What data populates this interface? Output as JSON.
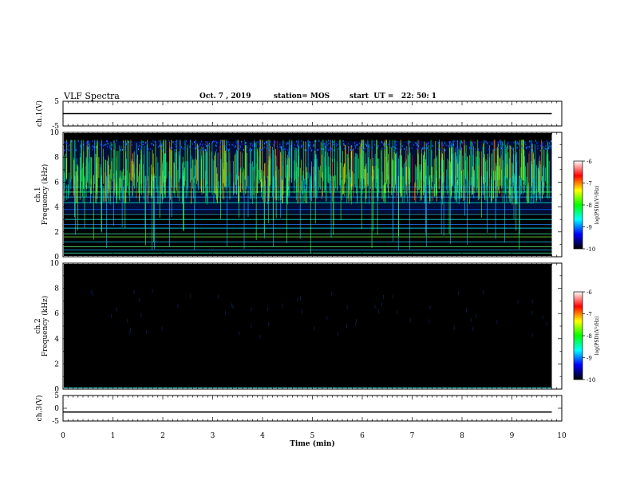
{
  "header": {
    "title": "VLF Spectra",
    "date": "Oct. 7 , 2019",
    "station": "station= MOS",
    "start": "start  UT =   22: 50: 1"
  },
  "colorbar": {
    "label": "log(PSD)(V²/Hz)",
    "ticks": [
      "-6",
      "-7",
      "-8",
      "-9",
      "-10"
    ],
    "colors": [
      "#ffffff",
      "#ff0000",
      "#ffff00",
      "#00ff00",
      "#00ffff",
      "#0000ff",
      "#000000"
    ]
  },
  "chart_data": [
    {
      "type": "line",
      "panel": "ch1-waveform",
      "ylabel": "ch.1(V)",
      "ylim": [
        -5,
        5
      ],
      "yticks": [
        "5",
        "-5"
      ],
      "xlim": [
        0,
        10
      ],
      "series": [
        {
          "x": [
            0,
            9.8
          ],
          "values": [
            0,
            0
          ]
        }
      ]
    },
    {
      "type": "heatmap",
      "panel": "ch1-spectrogram",
      "ylabel": "ch.1 Frequency (kHz)",
      "ylim": [
        0,
        10
      ],
      "yticks": [
        "0",
        "2",
        "4",
        "6",
        "8",
        "10"
      ],
      "xlim": [
        0,
        10
      ],
      "data_extent_min": 9.8,
      "clim": [
        -10,
        -6
      ],
      "activity_band_khz": [
        4,
        9.5
      ]
    },
    {
      "type": "heatmap",
      "panel": "ch2-spectrogram",
      "ylabel": "ch.2 Frequency (kHz)",
      "ylim": [
        0,
        10
      ],
      "yticks": [
        "0",
        "2",
        "4",
        "6",
        "8",
        "10"
      ],
      "xlim": [
        0,
        10
      ],
      "data_extent_min": 9.8,
      "clim": [
        -10,
        -6
      ]
    },
    {
      "type": "line",
      "panel": "ch3-waveform",
      "ylabel": "ch.3(V)",
      "ylim": [
        -5,
        5
      ],
      "yticks": [
        "5",
        "0",
        "-5"
      ],
      "xlim": [
        0,
        10
      ],
      "xlabel": "Time (min)",
      "xticks": [
        "0",
        "1",
        "2",
        "3",
        "4",
        "5",
        "6",
        "7",
        "8",
        "9",
        "10"
      ],
      "series": [
        {
          "x": [
            0,
            9.8
          ],
          "values": [
            -1.5,
            -1.5
          ]
        }
      ]
    }
  ]
}
